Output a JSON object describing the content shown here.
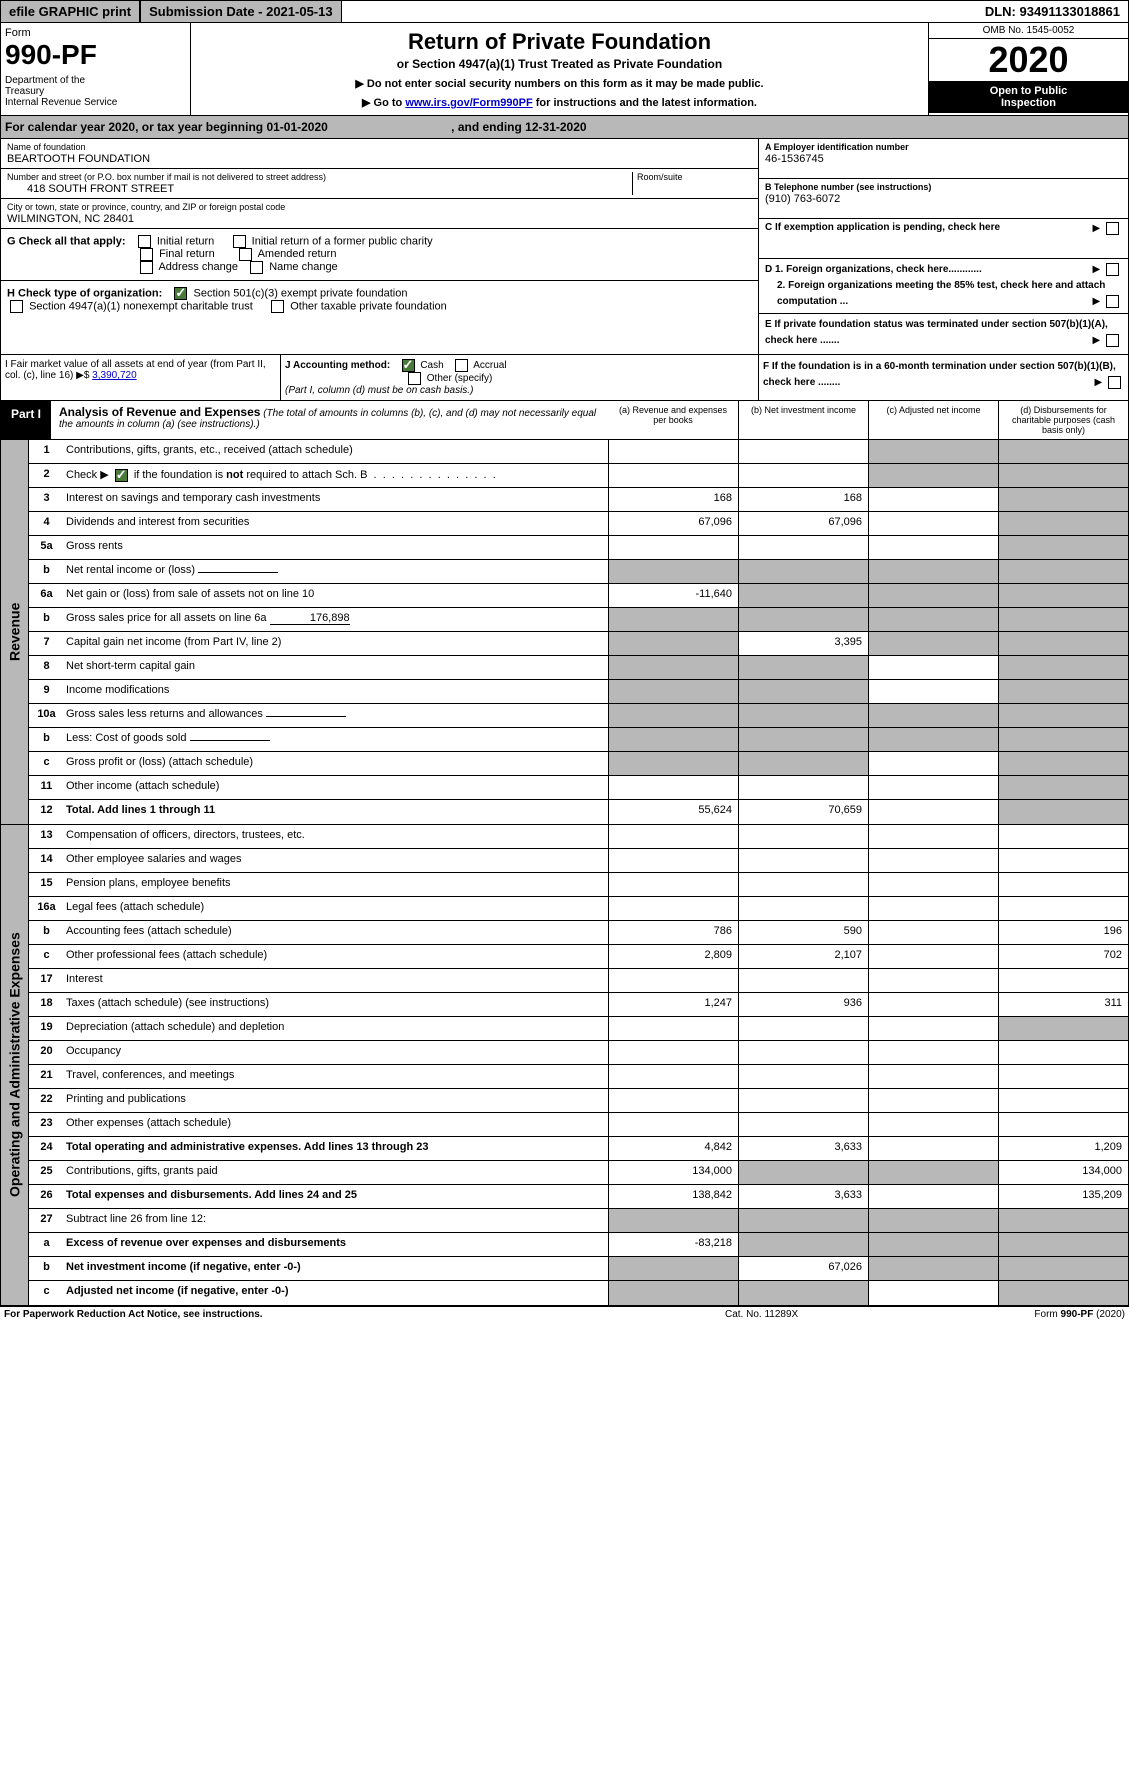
{
  "topbar": {
    "efile": "efile GRAPHIC print",
    "subdate": "Submission Date - 2021-05-13",
    "dln": "DLN: 93491133018861"
  },
  "header": {
    "form": "Form",
    "formnum": "990-PF",
    "dept": "Department of the Treasury\nInternal Revenue Service",
    "title": "Return of Private Foundation",
    "subtitle": "or Section 4947(a)(1) Trust Treated as Private Foundation",
    "note1": "▶ Do not enter social security numbers on this form as it may be made public.",
    "note2": "▶ Go to www.irs.gov/Form990PF for instructions and the latest information.",
    "link_text": "www.irs.gov/Form990PF",
    "omb": "OMB No. 1545-0052",
    "year": "2020",
    "openpub": "Open to Public\nInspection"
  },
  "calyear": {
    "text_a": "For calendar year 2020, or tax year beginning 01-01-2020",
    "text_b": ", and ending 12-31-2020"
  },
  "info": {
    "name_label": "Name of foundation",
    "name": "BEARTOOTH FOUNDATION",
    "addr_label": "Number and street (or P.O. box number if mail is not delivered to street address)",
    "addr": "418 SOUTH FRONT STREET",
    "room_label": "Room/suite",
    "city_label": "City or town, state or province, country, and ZIP or foreign postal code",
    "city": "WILMINGTON, NC  28401",
    "ein_label": "A Employer identification number",
    "ein": "46-1536745",
    "tel_label": "B Telephone number (see instructions)",
    "tel": "(910) 763-6072",
    "c_label": "C If exemption application is pending, check here",
    "g_label": "G Check all that apply:",
    "g_opts": [
      "Initial return",
      "Initial return of a former public charity",
      "Final return",
      "Amended return",
      "Address change",
      "Name change"
    ],
    "h_label": "H Check type of organization:",
    "h_opt1": "Section 501(c)(3) exempt private foundation",
    "h_opt2": "Section 4947(a)(1) nonexempt charitable trust",
    "h_opt3": "Other taxable private foundation",
    "d1": "D 1. Foreign organizations, check here............",
    "d2": "2. Foreign organizations meeting the 85% test, check here and attach computation ...",
    "e": "E  If private foundation status was terminated under section 507(b)(1)(A), check here .......",
    "f": "F  If the foundation is in a 60-month termination under section 507(b)(1)(B), check here ........",
    "i_label": "I Fair market value of all assets at end of year (from Part II, col. (c), line 16) ▶$",
    "i_val": "3,390,720",
    "j_label": "J Accounting method:",
    "j_cash": "Cash",
    "j_accrual": "Accrual",
    "j_other": "Other (specify)",
    "j_note": "(Part I, column (d) must be on cash basis.)"
  },
  "part1": {
    "label": "Part I",
    "title": "Analysis of Revenue and Expenses",
    "subtitle": "(The total of amounts in columns (b), (c), and (d) may not necessarily equal the amounts in column (a) (see instructions).)",
    "col_a": "(a)    Revenue and expenses per books",
    "col_b": "(b)   Net investment income",
    "col_c": "(c)   Adjusted net income",
    "col_d": "(d)   Disbursements for charitable purposes (cash basis only)"
  },
  "sections": {
    "revenue": "Revenue",
    "expenses": "Operating and Administrative Expenses"
  },
  "rows": [
    {
      "n": "1",
      "d": "Contributions, gifts, grants, etc., received (attach schedule)",
      "a": "",
      "b": "",
      "c": "s",
      "dd": "s"
    },
    {
      "n": "2",
      "d": "Check ▶ ☑ if the foundation is not required to attach Sch. B",
      "a": "",
      "b": "",
      "c": "s",
      "dd": "s",
      "special": "check"
    },
    {
      "n": "3",
      "d": "Interest on savings and temporary cash investments",
      "a": "168",
      "b": "168",
      "c": "",
      "dd": "s"
    },
    {
      "n": "4",
      "d": "Dividends and interest from securities",
      "a": "67,096",
      "b": "67,096",
      "c": "",
      "dd": "s"
    },
    {
      "n": "5a",
      "d": "Gross rents",
      "a": "",
      "b": "",
      "c": "",
      "dd": "s"
    },
    {
      "n": "b",
      "d": "Net rental income or (loss)",
      "a": "s",
      "b": "s",
      "c": "s",
      "dd": "s",
      "inline": true
    },
    {
      "n": "6a",
      "d": "Net gain or (loss) from sale of assets not on line 10",
      "a": "-11,640",
      "b": "s",
      "c": "s",
      "dd": "s"
    },
    {
      "n": "b",
      "d": "Gross sales price for all assets on line 6a",
      "a": "s",
      "b": "s",
      "c": "s",
      "dd": "s",
      "inline": true,
      "inlineval": "176,898"
    },
    {
      "n": "7",
      "d": "Capital gain net income (from Part IV, line 2)",
      "a": "s",
      "b": "3,395",
      "c": "s",
      "dd": "s"
    },
    {
      "n": "8",
      "d": "Net short-term capital gain",
      "a": "s",
      "b": "s",
      "c": "",
      "dd": "s"
    },
    {
      "n": "9",
      "d": "Income modifications",
      "a": "s",
      "b": "s",
      "c": "",
      "dd": "s"
    },
    {
      "n": "10a",
      "d": "Gross sales less returns and allowances",
      "a": "s",
      "b": "s",
      "c": "s",
      "dd": "s",
      "inline": true
    },
    {
      "n": "b",
      "d": "Less: Cost of goods sold",
      "a": "s",
      "b": "s",
      "c": "s",
      "dd": "s",
      "inline": true
    },
    {
      "n": "c",
      "d": "Gross profit or (loss) (attach schedule)",
      "a": "s",
      "b": "s",
      "c": "",
      "dd": "s"
    },
    {
      "n": "11",
      "d": "Other income (attach schedule)",
      "a": "",
      "b": "",
      "c": "",
      "dd": "s"
    },
    {
      "n": "12",
      "d": "Total. Add lines 1 through 11",
      "a": "55,624",
      "b": "70,659",
      "c": "",
      "dd": "s",
      "bold": true
    }
  ],
  "rows2": [
    {
      "n": "13",
      "d": "Compensation of officers, directors, trustees, etc.",
      "a": "",
      "b": "",
      "c": "",
      "dd": ""
    },
    {
      "n": "14",
      "d": "Other employee salaries and wages",
      "a": "",
      "b": "",
      "c": "",
      "dd": ""
    },
    {
      "n": "15",
      "d": "Pension plans, employee benefits",
      "a": "",
      "b": "",
      "c": "",
      "dd": ""
    },
    {
      "n": "16a",
      "d": "Legal fees (attach schedule)",
      "a": "",
      "b": "",
      "c": "",
      "dd": ""
    },
    {
      "n": "b",
      "d": "Accounting fees (attach schedule)",
      "a": "786",
      "b": "590",
      "c": "",
      "dd": "196"
    },
    {
      "n": "c",
      "d": "Other professional fees (attach schedule)",
      "a": "2,809",
      "b": "2,107",
      "c": "",
      "dd": "702"
    },
    {
      "n": "17",
      "d": "Interest",
      "a": "",
      "b": "",
      "c": "",
      "dd": ""
    },
    {
      "n": "18",
      "d": "Taxes (attach schedule) (see instructions)",
      "a": "1,247",
      "b": "936",
      "c": "",
      "dd": "311"
    },
    {
      "n": "19",
      "d": "Depreciation (attach schedule) and depletion",
      "a": "",
      "b": "",
      "c": "",
      "dd": "s"
    },
    {
      "n": "20",
      "d": "Occupancy",
      "a": "",
      "b": "",
      "c": "",
      "dd": ""
    },
    {
      "n": "21",
      "d": "Travel, conferences, and meetings",
      "a": "",
      "b": "",
      "c": "",
      "dd": ""
    },
    {
      "n": "22",
      "d": "Printing and publications",
      "a": "",
      "b": "",
      "c": "",
      "dd": ""
    },
    {
      "n": "23",
      "d": "Other expenses (attach schedule)",
      "a": "",
      "b": "",
      "c": "",
      "dd": ""
    },
    {
      "n": "24",
      "d": "Total operating and administrative expenses. Add lines 13 through 23",
      "a": "4,842",
      "b": "3,633",
      "c": "",
      "dd": "1,209",
      "bold": true
    },
    {
      "n": "25",
      "d": "Contributions, gifts, grants paid",
      "a": "134,000",
      "b": "s",
      "c": "s",
      "dd": "134,000"
    },
    {
      "n": "26",
      "d": "Total expenses and disbursements. Add lines 24 and 25",
      "a": "138,842",
      "b": "3,633",
      "c": "",
      "dd": "135,209",
      "bold": true
    },
    {
      "n": "27",
      "d": "Subtract line 26 from line 12:",
      "a": "s",
      "b": "s",
      "c": "s",
      "dd": "s"
    },
    {
      "n": "a",
      "d": "Excess of revenue over expenses and disbursements",
      "a": "-83,218",
      "b": "s",
      "c": "s",
      "dd": "s",
      "bold": true
    },
    {
      "n": "b",
      "d": "Net investment income (if negative, enter -0-)",
      "a": "s",
      "b": "67,026",
      "c": "s",
      "dd": "s",
      "bold": true
    },
    {
      "n": "c",
      "d": "Adjusted net income (if negative, enter -0-)",
      "a": "s",
      "b": "s",
      "c": "",
      "dd": "s",
      "bold": true
    }
  ],
  "footer": {
    "left": "For Paperwork Reduction Act Notice, see instructions.",
    "mid": "Cat. No. 11289X",
    "right": "Form 990-PF (2020)"
  },
  "colors": {
    "shade": "#b8b8b8",
    "link": "#0000cc",
    "check": "#4a7a3a"
  }
}
